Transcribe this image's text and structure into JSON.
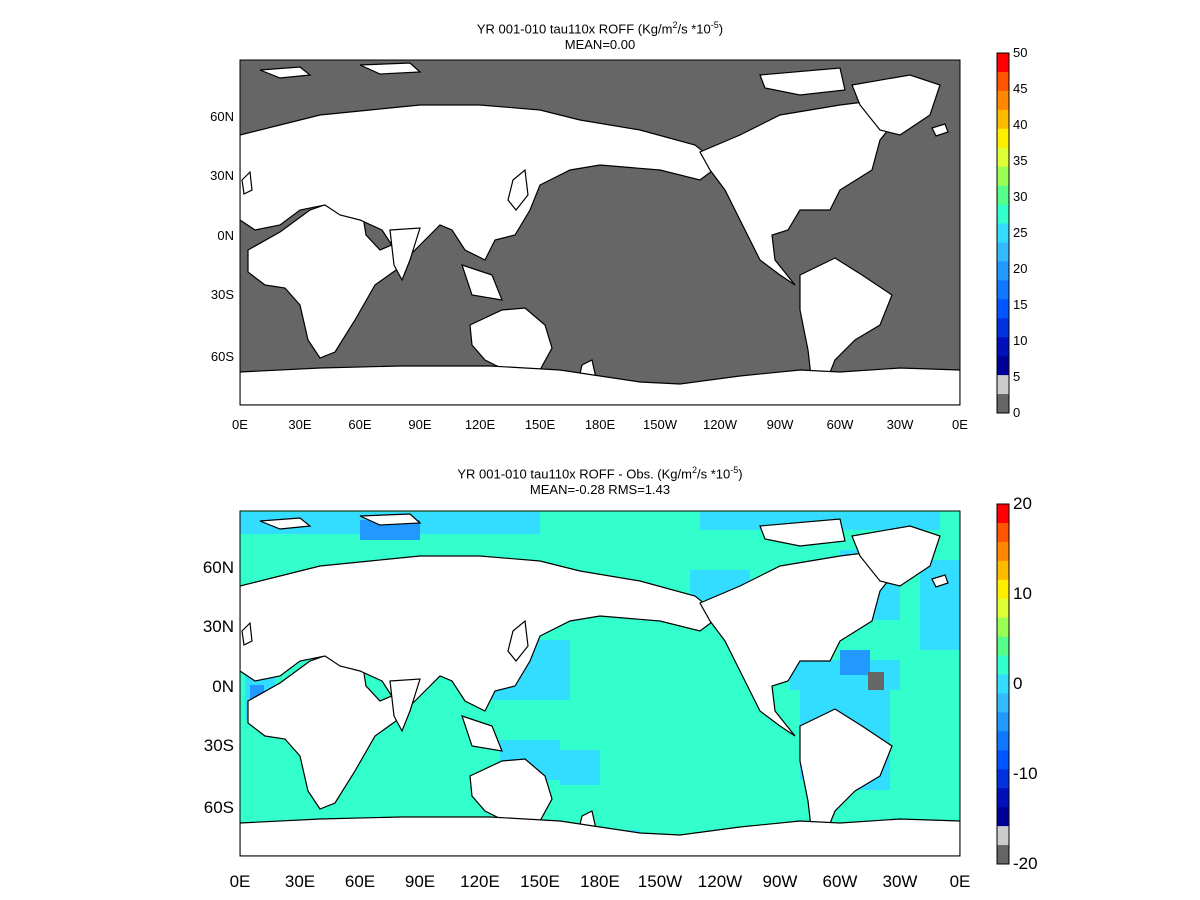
{
  "colors": {
    "ocean_grey": "#666666",
    "land": "#ffffff",
    "bias_fill": "#33ffcc",
    "bias_light": "#33ddff",
    "bias_mid": "#2299ff",
    "bias_strong": "#3355ff",
    "coast": "#000000"
  },
  "panels": [
    {
      "title_part1": "YR 001-010 tau110x ROFF (Kg/m",
      "title_sup1": "2",
      "title_part2": "/s  *10",
      "title_sup2": "-5",
      "title_part3": ")",
      "subtitle": "MEAN=0.00",
      "lat_labels": [
        "60N",
        "30N",
        "0N",
        "30S",
        "60S"
      ],
      "lon_labels": [
        "0E",
        "30E",
        "60E",
        "90E",
        "120E",
        "150E",
        "180E",
        "150W",
        "120W",
        "90W",
        "60W",
        "30W",
        "0E"
      ],
      "colorbar": {
        "labels": [
          "50",
          "45",
          "40",
          "35",
          "30",
          "25",
          "20",
          "15",
          "10",
          "5",
          "0"
        ],
        "colors_top_to_bottom": [
          "#ff0000",
          "#ff5500",
          "#ff8800",
          "#ffbb00",
          "#ffee00",
          "#ddff33",
          "#99ff55",
          "#55ff88",
          "#33ffcc",
          "#33ddff",
          "#33bbff",
          "#2299ff",
          "#1177ff",
          "#0055ff",
          "#0033dd",
          "#0011bb",
          "#000099",
          "#cccccc",
          "#666666"
        ]
      }
    },
    {
      "title_part1": "YR 001-010 tau110x ROFF - Obs. (Kg/m",
      "title_sup1": "2",
      "title_part2": "/s *10",
      "title_sup2": "-5",
      "title_part3": ")",
      "subtitle": "MEAN=-0.28   RMS=1.43",
      "lat_labels": [
        "60N",
        "30N",
        "0N",
        "30S",
        "60S"
      ],
      "lon_labels": [
        "0E",
        "30E",
        "60E",
        "90E",
        "120E",
        "150E",
        "180E",
        "150W",
        "120W",
        "90W",
        "60W",
        "30W",
        "0E"
      ],
      "colorbar": {
        "labels": [
          "20",
          "10",
          "0",
          "-10",
          "-20"
        ],
        "colors_top_to_bottom": [
          "#ff0000",
          "#ff5500",
          "#ff8800",
          "#ffbb00",
          "#ffee00",
          "#ddff33",
          "#99ff55",
          "#55ff88",
          "#33ffcc",
          "#33ddff",
          "#33bbff",
          "#2299ff",
          "#1177ff",
          "#0055ff",
          "#0033dd",
          "#0011bb",
          "#000099",
          "#cccccc",
          "#666666"
        ]
      }
    }
  ]
}
